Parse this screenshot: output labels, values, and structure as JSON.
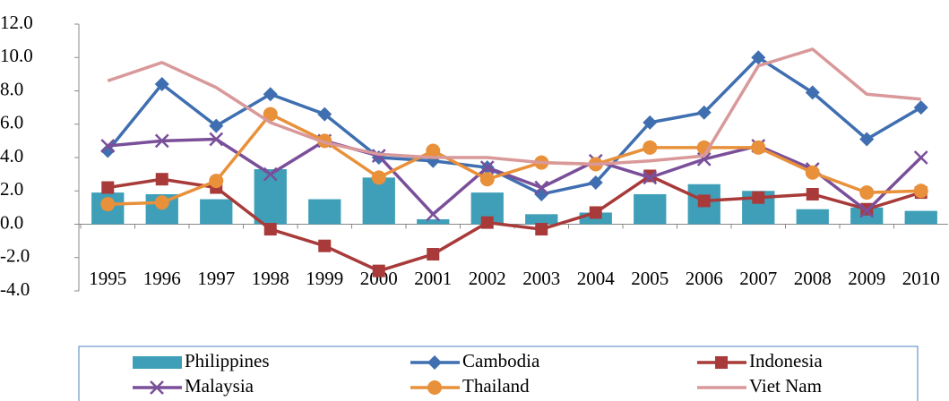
{
  "chart_data": {
    "type": "combo",
    "legend": "bottom",
    "categories": [
      "1995",
      "1996",
      "1997",
      "1998",
      "1999",
      "2000",
      "2001",
      "2002",
      "2003",
      "2004",
      "2005",
      "2006",
      "2007",
      "2008",
      "2009",
      "2010"
    ],
    "ylim": [
      -4,
      12
    ],
    "yticks": [
      {
        "value": -4,
        "label": "-4.0"
      },
      {
        "value": -2,
        "label": "-2.0"
      },
      {
        "value": 0,
        "label": "0.0"
      },
      {
        "value": 2,
        "label": "2.0"
      },
      {
        "value": 4,
        "label": "4.0"
      },
      {
        "value": 6,
        "label": "6.0"
      },
      {
        "value": 8,
        "label": "8.0"
      },
      {
        "value": 10,
        "label": "10.0"
      },
      {
        "value": 12,
        "label": "12.0"
      }
    ],
    "series": [
      {
        "name": "Philippines",
        "type": "bar",
        "color": "#3f9fb8",
        "values": [
          1.9,
          1.8,
          1.5,
          3.3,
          1.5,
          2.8,
          0.3,
          1.9,
          0.6,
          0.7,
          1.8,
          2.4,
          2.0,
          0.9,
          1.0,
          0.8
        ]
      },
      {
        "name": "Cambodia",
        "type": "line",
        "marker": "diamond",
        "color": "#3f6fb0",
        "values": [
          4.4,
          8.4,
          5.9,
          7.8,
          6.6,
          4.0,
          3.8,
          3.4,
          1.8,
          2.5,
          6.1,
          6.7,
          10.0,
          7.9,
          5.1,
          7.0
        ]
      },
      {
        "name": "Indonesia",
        "type": "line",
        "marker": "square",
        "color": "#a83a3a",
        "values": [
          2.2,
          2.7,
          2.2,
          -0.3,
          -1.3,
          -2.8,
          -1.8,
          0.1,
          -0.3,
          0.7,
          2.9,
          1.4,
          1.6,
          1.8,
          0.9,
          1.9
        ]
      },
      {
        "name": "Malaysia",
        "type": "line",
        "marker": "x",
        "color": "#7a4f9a",
        "values": [
          4.7,
          5.0,
          5.1,
          3.0,
          5.0,
          4.1,
          0.6,
          3.4,
          2.2,
          3.8,
          2.8,
          3.9,
          4.7,
          3.3,
          0.8,
          4.0
        ]
      },
      {
        "name": "Thailand",
        "type": "line",
        "marker": "circle",
        "color": "#e8903a",
        "values": [
          1.2,
          1.3,
          2.6,
          6.6,
          5.0,
          2.8,
          4.4,
          2.7,
          3.7,
          3.6,
          4.6,
          4.6,
          4.6,
          3.1,
          1.9,
          2.0
        ]
      },
      {
        "name": "Viet Nam",
        "type": "line",
        "marker": "none",
        "color": "#d9999a",
        "values": [
          8.6,
          9.7,
          8.2,
          6.1,
          4.9,
          4.2,
          4.0,
          4.0,
          3.7,
          3.6,
          3.8,
          4.1,
          9.5,
          10.5,
          7.8,
          7.5
        ]
      }
    ]
  }
}
